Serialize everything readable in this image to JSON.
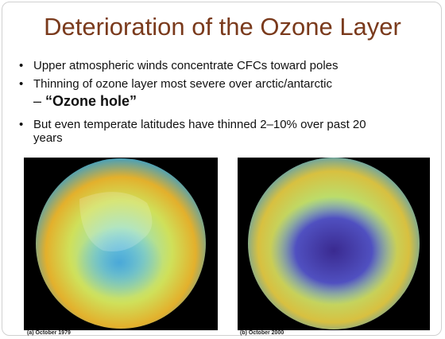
{
  "title": "Deterioration of the Ozone Layer",
  "bullets": [
    "Upper atmospheric winds concentrate CFCs toward poles",
    "Thinning of ozone layer most severe over arctic/antarctic"
  ],
  "sub_bullet": "“Ozone hole”",
  "last_bullet": "But even temperate latitudes have thinned 2–10% over past 20 years",
  "figures": [
    {
      "caption": "(a) October 1979"
    },
    {
      "caption": "(b) October 2000"
    }
  ]
}
